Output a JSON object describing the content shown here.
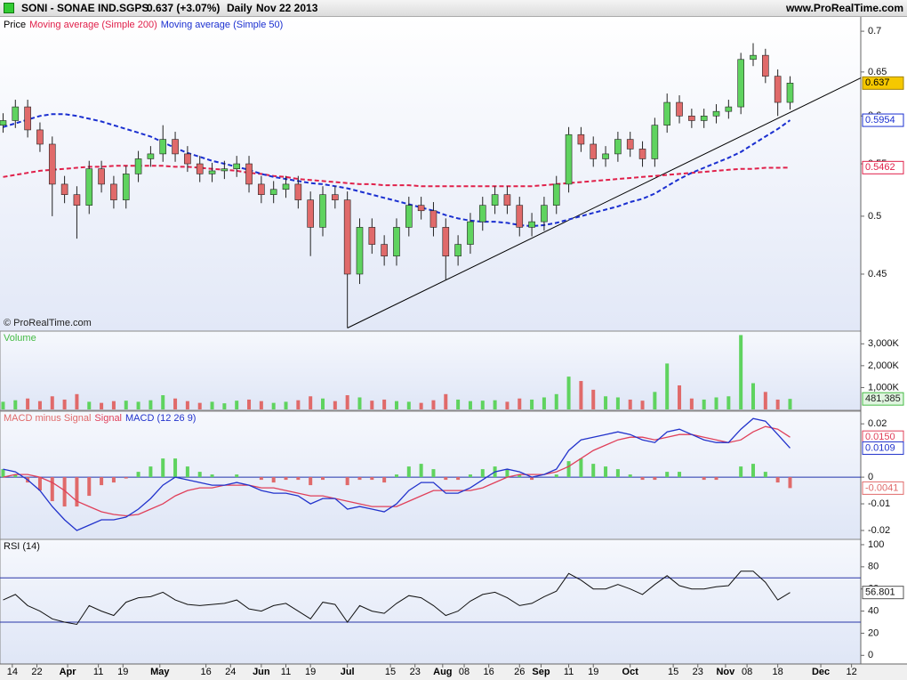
{
  "header": {
    "symbol": "SONI - SONAE IND.SGPS",
    "quote": "0.637 (+3.07%)",
    "period": "Daily",
    "date": "Nov 22 2013",
    "site": "www.ProRealTime.com"
  },
  "chart_data": [
    {
      "type": "candlestick",
      "name": "Price",
      "watermark": "© ProRealTime.com",
      "log": true,
      "up_color": "#5fd35f",
      "down_color": "#e06a6a",
      "ylim": [
        0.407,
        0.715
      ],
      "yticks": [
        0.45,
        0.5,
        0.55,
        0.6,
        0.65,
        0.7
      ],
      "close_label": "0.637",
      "x": [
        "2013-03-11",
        "2013-03-15",
        "2013-03-19",
        "2013-03-23",
        "2013-03-27",
        "2013-03-31",
        "2013-04-04",
        "2013-04-08",
        "2013-04-12",
        "2013-04-16",
        "2013-04-20",
        "2013-04-24",
        "2013-04-28",
        "2013-05-02",
        "2013-05-06",
        "2013-05-10",
        "2013-05-14",
        "2013-05-18",
        "2013-05-22",
        "2013-05-26",
        "2013-05-30",
        "2013-06-03",
        "2013-06-07",
        "2013-06-11",
        "2013-06-15",
        "2013-06-19",
        "2013-06-23",
        "2013-06-27",
        "2013-07-01",
        "2013-07-05",
        "2013-07-09",
        "2013-07-13",
        "2013-07-17",
        "2013-07-21",
        "2013-07-25",
        "2013-07-29",
        "2013-08-02",
        "2013-08-06",
        "2013-08-10",
        "2013-08-14",
        "2013-08-18",
        "2013-08-22",
        "2013-08-26",
        "2013-08-30",
        "2013-09-03",
        "2013-09-07",
        "2013-09-11",
        "2013-09-15",
        "2013-09-19",
        "2013-09-23",
        "2013-09-27",
        "2013-10-01",
        "2013-10-05",
        "2013-10-09",
        "2013-10-13",
        "2013-10-17",
        "2013-10-21",
        "2013-10-25",
        "2013-10-29",
        "2013-11-02",
        "2013-11-06",
        "2013-11-10",
        "2013-11-14",
        "2013-11-18",
        "2013-11-22"
      ],
      "open": [
        0.59,
        0.595,
        0.61,
        0.585,
        0.57,
        0.53,
        0.52,
        0.51,
        0.545,
        0.53,
        0.515,
        0.54,
        0.555,
        0.56,
        0.575,
        0.56,
        0.55,
        0.54,
        0.543,
        0.545,
        0.55,
        0.53,
        0.52,
        0.525,
        0.53,
        0.515,
        0.49,
        0.52,
        0.515,
        0.45,
        0.49,
        0.475,
        0.465,
        0.49,
        0.51,
        0.505,
        0.49,
        0.465,
        0.475,
        0.495,
        0.51,
        0.52,
        0.51,
        0.49,
        0.495,
        0.51,
        0.53,
        0.58,
        0.57,
        0.555,
        0.56,
        0.575,
        0.565,
        0.555,
        0.59,
        0.615,
        0.6,
        0.595,
        0.6,
        0.605,
        0.61,
        0.665,
        0.67,
        0.645,
        0.615
      ],
      "high": [
        0.603,
        0.618,
        0.618,
        0.593,
        0.578,
        0.538,
        0.528,
        0.553,
        0.553,
        0.538,
        0.548,
        0.563,
        0.568,
        0.59,
        0.583,
        0.568,
        0.558,
        0.551,
        0.553,
        0.558,
        0.558,
        0.538,
        0.533,
        0.538,
        0.538,
        0.523,
        0.528,
        0.528,
        0.523,
        0.498,
        0.498,
        0.483,
        0.498,
        0.518,
        0.518,
        0.513,
        0.498,
        0.483,
        0.503,
        0.518,
        0.528,
        0.528,
        0.518,
        0.503,
        0.518,
        0.538,
        0.588,
        0.588,
        0.578,
        0.568,
        0.583,
        0.583,
        0.573,
        0.598,
        0.625,
        0.623,
        0.608,
        0.608,
        0.613,
        0.618,
        0.673,
        0.685,
        0.678,
        0.653,
        0.645
      ],
      "low": [
        0.582,
        0.587,
        0.577,
        0.562,
        0.5,
        0.512,
        0.48,
        0.502,
        0.522,
        0.507,
        0.507,
        0.532,
        0.547,
        0.552,
        0.552,
        0.542,
        0.532,
        0.532,
        0.535,
        0.537,
        0.522,
        0.512,
        0.512,
        0.517,
        0.507,
        0.465,
        0.482,
        0.507,
        0.408,
        0.442,
        0.467,
        0.457,
        0.457,
        0.482,
        0.497,
        0.482,
        0.445,
        0.457,
        0.467,
        0.487,
        0.502,
        0.502,
        0.482,
        0.482,
        0.487,
        0.502,
        0.522,
        0.562,
        0.547,
        0.547,
        0.552,
        0.557,
        0.547,
        0.547,
        0.582,
        0.592,
        0.587,
        0.587,
        0.592,
        0.597,
        0.602,
        0.657,
        0.637,
        0.6,
        0.607
      ],
      "close": [
        0.595,
        0.61,
        0.585,
        0.57,
        0.53,
        0.52,
        0.51,
        0.545,
        0.53,
        0.515,
        0.54,
        0.555,
        0.56,
        0.575,
        0.56,
        0.55,
        0.54,
        0.543,
        0.545,
        0.55,
        0.53,
        0.52,
        0.525,
        0.53,
        0.515,
        0.49,
        0.52,
        0.515,
        0.45,
        0.49,
        0.475,
        0.465,
        0.49,
        0.51,
        0.505,
        0.49,
        0.465,
        0.475,
        0.495,
        0.51,
        0.52,
        0.51,
        0.49,
        0.495,
        0.51,
        0.53,
        0.58,
        0.57,
        0.555,
        0.56,
        0.575,
        0.565,
        0.555,
        0.59,
        0.615,
        0.6,
        0.595,
        0.6,
        0.605,
        0.61,
        0.665,
        0.67,
        0.645,
        0.615,
        0.637
      ],
      "series": [
        {
          "name": "Moving average (Simple 200)",
          "color": "#e0204a",
          "last_label": "0.5462",
          "values": [
            0.537,
            0.539,
            0.541,
            0.543,
            0.544,
            0.545,
            0.546,
            0.547,
            0.547,
            0.548,
            0.548,
            0.548,
            0.548,
            0.548,
            0.547,
            0.547,
            0.546,
            0.545,
            0.544,
            0.543,
            0.541,
            0.54,
            0.538,
            0.537,
            0.535,
            0.534,
            0.533,
            0.532,
            0.531,
            0.53,
            0.53,
            0.529,
            0.529,
            0.529,
            0.528,
            0.528,
            0.528,
            0.528,
            0.528,
            0.528,
            0.528,
            0.528,
            0.528,
            0.528,
            0.529,
            0.53,
            0.531,
            0.532,
            0.533,
            0.534,
            0.535,
            0.536,
            0.537,
            0.538,
            0.539,
            0.54,
            0.541,
            0.542,
            0.543,
            0.544,
            0.545,
            0.545,
            0.546,
            0.546,
            0.5462
          ]
        },
        {
          "name": "Moving average (Simple 50)",
          "color": "#1a2fd0",
          "last_label": "0.5954",
          "values": [
            0.588,
            0.592,
            0.596,
            0.6,
            0.602,
            0.602,
            0.6,
            0.597,
            0.594,
            0.59,
            0.586,
            0.582,
            0.578,
            0.572,
            0.566,
            0.561,
            0.557,
            0.553,
            0.55,
            0.547,
            0.544,
            0.54,
            0.537,
            0.535,
            0.533,
            0.531,
            0.53,
            0.528,
            0.526,
            0.523,
            0.52,
            0.517,
            0.514,
            0.511,
            0.508,
            0.505,
            0.501,
            0.498,
            0.496,
            0.495,
            0.495,
            0.494,
            0.492,
            0.491,
            0.492,
            0.494,
            0.497,
            0.5,
            0.503,
            0.506,
            0.509,
            0.513,
            0.516,
            0.521,
            0.528,
            0.535,
            0.541,
            0.546,
            0.551,
            0.556,
            0.562,
            0.57,
            0.578,
            0.586,
            0.5954
          ]
        }
      ],
      "trendline": {
        "x": [
          "2013-07-01",
          "2013-12-15"
        ],
        "values": [
          0.408,
          0.643
        ]
      }
    },
    {
      "type": "bar",
      "title": "Volume",
      "color": "#44bb44",
      "last_label": "481,385",
      "ylim": [
        0,
        3500000
      ],
      "yticks": [
        {
          "value": 1000000,
          "label": "1,000K"
        },
        {
          "value": 2000000,
          "label": "2,000K"
        },
        {
          "value": 3000000,
          "label": "3,000K"
        }
      ],
      "values": [
        350000,
        420000,
        500000,
        380000,
        600000,
        450000,
        700000,
        350000,
        300000,
        380000,
        400000,
        350000,
        420000,
        650000,
        500000,
        380000,
        300000,
        350000,
        280000,
        400000,
        450000,
        380000,
        300000,
        350000,
        420000,
        600000,
        500000,
        380000,
        650000,
        550000,
        400000,
        450000,
        380000,
        350000,
        300000,
        420000,
        700000,
        450000,
        380000,
        400000,
        420000,
        350000,
        500000,
        450000,
        550000,
        700000,
        1500000,
        1300000,
        900000,
        600000,
        550000,
        450000,
        400000,
        800000,
        2100000,
        1100000,
        500000,
        450000,
        550000,
        600000,
        3400000,
        1200000,
        800000,
        450000,
        481385
      ]
    },
    {
      "type": "macd",
      "ylim": [
        -0.023,
        0.0244
      ],
      "yticks": [
        0.02,
        0,
        -0.01,
        -0.02
      ],
      "series": [
        {
          "name": "MACD minus Signal",
          "color": "#e06a6a",
          "last_label": "-0.0041",
          "values": [
            0.003,
            0.001,
            -0.002,
            -0.005,
            -0.009,
            -0.011,
            -0.011,
            -0.007,
            -0.003,
            -0.002,
            -0.0005,
            0.002,
            0.004,
            0.007,
            0.007,
            0.004,
            0.002,
            0.001,
            0.0,
            0.001,
            0.0,
            -0.001,
            -0.002,
            -0.001,
            -0.001,
            -0.003,
            -0.001,
            0.0,
            -0.003,
            -0.001,
            -0.001,
            -0.002,
            0.001,
            0.004,
            0.005,
            0.003,
            -0.001,
            -0.001,
            0.001,
            0.003,
            0.004,
            0.003,
            0.001,
            -0.001,
            0.0,
            0.001,
            0.006,
            0.007,
            0.005,
            0.004,
            0.003,
            0.001,
            -0.001,
            -0.001,
            0.002,
            0.002,
            0.0,
            -0.001,
            -0.001,
            0.0,
            0.004,
            0.005,
            0.002,
            -0.002,
            -0.0041
          ]
        },
        {
          "name": "Signal",
          "color": "#e0405a",
          "last_label": "0.0150",
          "values": [
            0.0,
            0.001,
            0.001,
            0.0,
            -0.002,
            -0.005,
            -0.009,
            -0.011,
            -0.013,
            -0.014,
            -0.0145,
            -0.014,
            -0.012,
            -0.01,
            -0.007,
            -0.005,
            -0.004,
            -0.004,
            -0.003,
            -0.003,
            -0.003,
            -0.004,
            -0.004,
            -0.005,
            -0.006,
            -0.007,
            -0.007,
            -0.008,
            -0.009,
            -0.01,
            -0.011,
            -0.011,
            -0.011,
            -0.009,
            -0.007,
            -0.005,
            -0.005,
            -0.005,
            -0.005,
            -0.004,
            -0.002,
            0.0,
            0.001,
            0.001,
            0.001,
            0.002,
            0.004,
            0.007,
            0.01,
            0.012,
            0.014,
            0.015,
            0.015,
            0.014,
            0.015,
            0.016,
            0.016,
            0.015,
            0.014,
            0.013,
            0.014,
            0.017,
            0.019,
            0.018,
            0.015
          ]
        },
        {
          "name": "MACD (12 26 9)",
          "color": "#2233cc",
          "last_label": "0.0109",
          "values": [
            0.003,
            0.002,
            -0.001,
            -0.005,
            -0.011,
            -0.016,
            -0.02,
            -0.018,
            -0.016,
            -0.016,
            -0.015,
            -0.012,
            -0.008,
            -0.003,
            0.0,
            -0.001,
            -0.002,
            -0.003,
            -0.003,
            -0.002,
            -0.003,
            -0.005,
            -0.006,
            -0.006,
            -0.007,
            -0.01,
            -0.008,
            -0.008,
            -0.012,
            -0.011,
            -0.012,
            -0.013,
            -0.01,
            -0.005,
            -0.002,
            -0.002,
            -0.006,
            -0.006,
            -0.004,
            -0.001,
            0.002,
            0.003,
            0.002,
            0.0,
            0.001,
            0.003,
            0.01,
            0.014,
            0.015,
            0.016,
            0.017,
            0.016,
            0.014,
            0.013,
            0.017,
            0.018,
            0.016,
            0.014,
            0.013,
            0.013,
            0.018,
            0.022,
            0.021,
            0.016,
            0.0109
          ]
        }
      ]
    },
    {
      "type": "line",
      "title": "RSI (14)",
      "color": "#111111",
      "level_color": "#2a36a8",
      "levels": [
        30,
        70
      ],
      "last_label": "56.801",
      "ylim": [
        -7,
        104
      ],
      "yticks": [
        0,
        20,
        40,
        60,
        80,
        100
      ],
      "values": [
        50,
        55,
        45,
        40,
        33,
        30,
        28,
        45,
        40,
        36,
        48,
        52,
        53,
        57,
        50,
        46,
        45,
        46,
        47,
        50,
        42,
        40,
        45,
        47,
        40,
        33,
        48,
        46,
        30,
        45,
        40,
        38,
        47,
        54,
        52,
        45,
        36,
        40,
        49,
        55,
        57,
        52,
        45,
        47,
        53,
        58,
        74,
        68,
        60,
        60,
        64,
        60,
        55,
        64,
        72,
        63,
        60,
        60,
        62,
        63,
        76,
        76,
        66,
        50,
        56.801
      ],
      "xlim": [
        "2013-03-10",
        "2013-12-15"
      ],
      "xticks": [
        {
          "value": "2013-03-14",
          "label": "14"
        },
        {
          "value": "2013-03-22",
          "label": "22"
        },
        {
          "value": "2013-04-01",
          "label": "Apr"
        },
        {
          "value": "2013-04-11",
          "label": "11"
        },
        {
          "value": "2013-04-19",
          "label": "19"
        },
        {
          "value": "2013-05-01",
          "label": "May"
        },
        {
          "value": "2013-05-16",
          "label": "16"
        },
        {
          "value": "2013-05-24",
          "label": "24"
        },
        {
          "value": "2013-06-03",
          "label": "Jun"
        },
        {
          "value": "2013-06-11",
          "label": "11"
        },
        {
          "value": "2013-06-19",
          "label": "19"
        },
        {
          "value": "2013-07-01",
          "label": "Jul"
        },
        {
          "value": "2013-07-15",
          "label": "15"
        },
        {
          "value": "2013-07-23",
          "label": "23"
        },
        {
          "value": "2013-08-01",
          "label": "Aug"
        },
        {
          "value": "2013-08-08",
          "label": "08"
        },
        {
          "value": "2013-08-16",
          "label": "16"
        },
        {
          "value": "2013-08-26",
          "label": "26"
        },
        {
          "value": "2013-09-02",
          "label": "Sep"
        },
        {
          "value": "2013-09-11",
          "label": "11"
        },
        {
          "value": "2013-09-19",
          "label": "19"
        },
        {
          "value": "2013-10-01",
          "label": "Oct"
        },
        {
          "value": "2013-10-15",
          "label": "15"
        },
        {
          "value": "2013-10-23",
          "label": "23"
        },
        {
          "value": "2013-11-01",
          "label": "Nov"
        },
        {
          "value": "2013-11-08",
          "label": "08"
        },
        {
          "value": "2013-11-18",
          "label": "18"
        },
        {
          "value": "2013-12-02",
          "label": "Dec"
        },
        {
          "value": "2013-12-12",
          "label": "12"
        }
      ]
    }
  ]
}
